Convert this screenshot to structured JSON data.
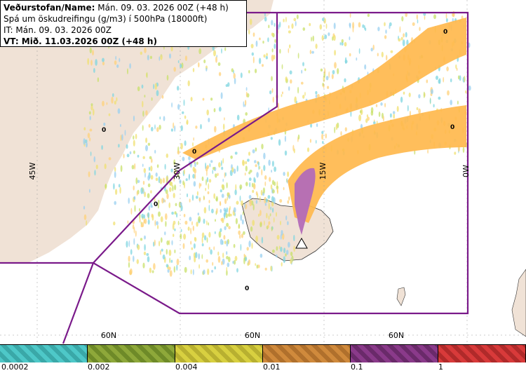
{
  "info": {
    "line1_bold": "Veðurstofan/Name:",
    "line1_rest": " Mán. 09. 03. 2026 00Z (+48 h)",
    "line2": "Spá um öskudreifingu (g/m3) í 500hPa (18000ft)",
    "line3": "IT: Mán. 09. 03. 2026 00Z",
    "line4": "VT: Mið. 11.03.2026 00Z (+48 h)"
  },
  "map_labels": {
    "lon_45w": "45W",
    "lon_30w": "30W",
    "lon_15w": "15W",
    "lon_0w": "0W",
    "lat_60n_a": "60N",
    "lat_60n_b": "60N",
    "lat_60n_c": "60N",
    "zero_marks": [
      "0",
      "0",
      "0",
      "0",
      "0",
      "0"
    ]
  },
  "legend": {
    "ticks": [
      "0.0002",
      "0.002",
      "0.004",
      "0.01",
      "0.1",
      "1"
    ],
    "colors": [
      "#4ec8c8",
      "#8ea83a",
      "#d8d040",
      "#d08a3c",
      "#8a3a8a",
      "#d83a3a"
    ]
  },
  "colors": {
    "land": "#f0e2d6",
    "fir_boundary": "#7a1a8a",
    "ash_low": "#ffb84d",
    "ash_high": "#b36bb8"
  }
}
